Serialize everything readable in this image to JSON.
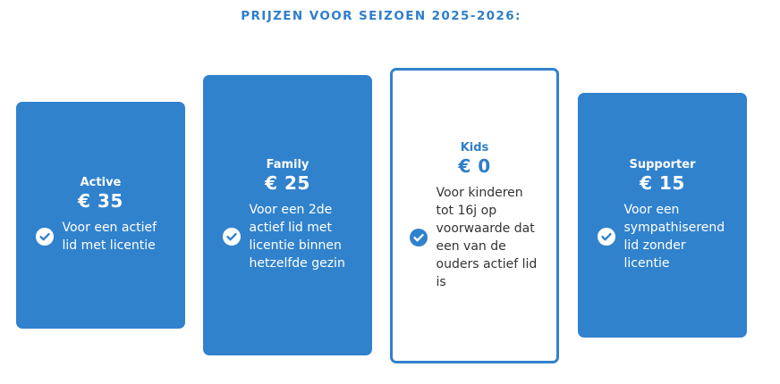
{
  "heading": "PRIJZEN VOOR SEIZOEN 2025-2026:",
  "colors": {
    "accent": "#3182cd",
    "card_text": "#ffffff",
    "outline_text": "#333333"
  },
  "cards": [
    {
      "name": "Active",
      "price": "€ 35",
      "feature": "Voor een actief lid met licentie",
      "icon": "check-circle-icon"
    },
    {
      "name": "Family",
      "price": "€ 25",
      "feature": "Voor een 2de actief lid met licentie binnen hetzelfde gezin",
      "icon": "check-circle-icon"
    },
    {
      "name": "Kids",
      "price": "€ 0",
      "feature": "Voor kinderen tot 16j op voorwaarde dat een van de ouders actief lid is",
      "icon": "check-circle-icon"
    },
    {
      "name": "Supporter",
      "price": "€ 15",
      "feature": "Voor een sympathiserend lid zonder licentie",
      "icon": "check-circle-icon"
    }
  ]
}
